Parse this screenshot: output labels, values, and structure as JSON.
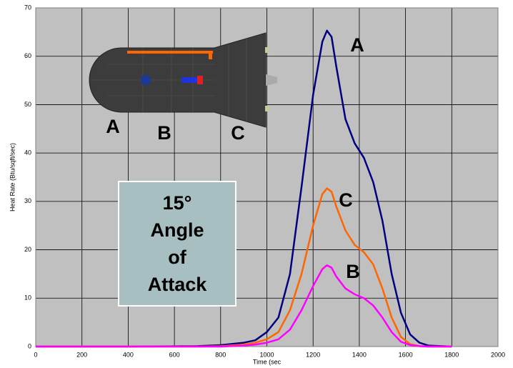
{
  "chart_data": {
    "type": "line",
    "x_label": "Time (sec",
    "y_label": "Heat Rate (Btu/sqft/sec)",
    "x": [
      0,
      200,
      400,
      600,
      700,
      800,
      900,
      950,
      1000,
      1050,
      1100,
      1150,
      1200,
      1240,
      1260,
      1280,
      1300,
      1340,
      1380,
      1420,
      1460,
      1500,
      1540,
      1580,
      1620,
      1660,
      1700,
      1800
    ],
    "series": [
      {
        "name": "A",
        "color": "#000080",
        "values": [
          0,
          0,
          0,
          0.05,
          0.1,
          0.3,
          0.8,
          1.3,
          3,
          6,
          15,
          33,
          52,
          63,
          65.3,
          64,
          58,
          47,
          42,
          39,
          34,
          26,
          15,
          7,
          2.5,
          0.8,
          0.2,
          0
        ]
      },
      {
        "name": "C",
        "color": "#ff6600",
        "values": [
          0,
          0,
          0,
          0,
          0,
          0.1,
          0.4,
          0.8,
          1.5,
          3,
          7.5,
          15,
          25,
          31.5,
          32.7,
          32,
          29,
          24,
          21,
          19.5,
          17,
          12,
          6,
          2,
          0.5,
          0.1,
          0,
          0
        ]
      },
      {
        "name": "B",
        "color": "#ff00ff",
        "values": [
          0,
          0,
          0,
          0,
          0,
          0,
          0.2,
          0.4,
          0.8,
          1.5,
          3.5,
          7.5,
          12.5,
          16,
          16.8,
          16.3,
          14.5,
          12,
          10.8,
          10,
          8.5,
          6,
          3,
          1,
          0.3,
          0.1,
          0,
          0
        ]
      }
    ],
    "xlim": [
      0,
      2000
    ],
    "xticks": [
      0,
      200,
      400,
      600,
      800,
      1000,
      1200,
      1400,
      1600,
      1800,
      2000
    ],
    "ylim": [
      0,
      70
    ],
    "yticks": [
      0,
      10,
      20,
      30,
      40,
      50,
      60,
      70
    ],
    "grid": true,
    "background": "#c0c0c0",
    "box_text": [
      "15°",
      "Angle",
      "of",
      "Attack"
    ],
    "vehicle_labels": [
      "A",
      "B",
      "C"
    ]
  }
}
